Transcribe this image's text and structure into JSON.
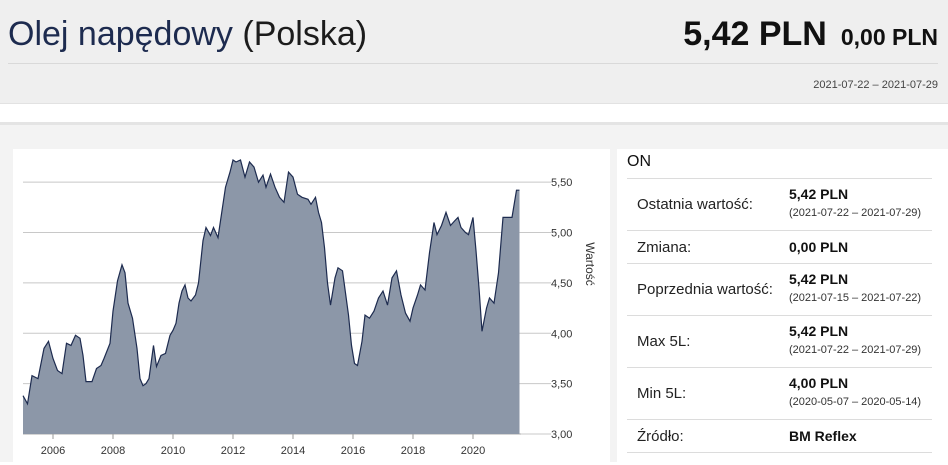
{
  "header": {
    "title": "Olej napędowy",
    "country": "(Polska)",
    "price": "5,42 PLN",
    "change": "0,00 PLN",
    "date_range": "2021-07-22 – 2021-07-29"
  },
  "info": {
    "title": "ON",
    "rows": [
      {
        "label": "Ostatnia wartość:",
        "value": "5,42 PLN",
        "sub": "(2021-07-22 – 2021-07-29)"
      },
      {
        "label": "Zmiana:",
        "value": "0,00 PLN"
      },
      {
        "label": "Poprzednia wartość:",
        "value": "5,42 PLN",
        "sub": "(2021-07-15 – 2021-07-22)"
      },
      {
        "label": "Max 5L:",
        "value": "5,42 PLN",
        "sub": "(2021-07-22 – 2021-07-29)"
      },
      {
        "label": "Min 5L:",
        "value": "4,00 PLN",
        "sub": "(2020-05-07 – 2020-05-14)"
      },
      {
        "label": "Źródło:",
        "value": "BM Reflex"
      }
    ]
  },
  "chart_data": {
    "type": "area",
    "ylabel": "Wartość",
    "ylim": [
      3.0,
      5.75
    ],
    "xlim": [
      2005.0,
      2021.6
    ],
    "y_ticks": [
      "3,00",
      "3,50",
      "4,00",
      "4,50",
      "5,00",
      "5,50"
    ],
    "x_ticks": [
      "2006",
      "2008",
      "2010",
      "2012",
      "2014",
      "2016",
      "2018",
      "2020"
    ],
    "grid": true,
    "fill_color": "#8c97a8",
    "line_color": "#1d2b4f",
    "x": [
      2005.0,
      2005.15,
      2005.3,
      2005.5,
      2005.7,
      2005.85,
      2006.0,
      2006.15,
      2006.3,
      2006.45,
      2006.6,
      2006.75,
      2006.9,
      2007.0,
      2007.1,
      2007.3,
      2007.45,
      2007.6,
      2007.7,
      2007.9,
      2008.0,
      2008.15,
      2008.3,
      2008.4,
      2008.5,
      2008.65,
      2008.8,
      2008.9,
      2009.0,
      2009.1,
      2009.2,
      2009.35,
      2009.45,
      2009.6,
      2009.75,
      2009.9,
      2010.0,
      2010.1,
      2010.2,
      2010.3,
      2010.4,
      2010.5,
      2010.6,
      2010.75,
      2010.85,
      2011.0,
      2011.1,
      2011.25,
      2011.35,
      2011.5,
      2011.6,
      2011.75,
      2011.9,
      2012.0,
      2012.1,
      2012.25,
      2012.4,
      2012.55,
      2012.7,
      2012.85,
      2013.0,
      2013.1,
      2013.25,
      2013.4,
      2013.55,
      2013.7,
      2013.85,
      2014.0,
      2014.15,
      2014.3,
      2014.5,
      2014.6,
      2014.75,
      2014.85,
      2014.95,
      2015.05,
      2015.15,
      2015.25,
      2015.4,
      2015.5,
      2015.65,
      2015.75,
      2015.85,
      2015.95,
      2016.05,
      2016.15,
      2016.3,
      2016.4,
      2016.55,
      2016.7,
      2016.85,
      2017.0,
      2017.15,
      2017.3,
      2017.45,
      2017.6,
      2017.75,
      2017.9,
      2018.0,
      2018.15,
      2018.25,
      2018.4,
      2018.55,
      2018.7,
      2018.8,
      2018.95,
      2019.1,
      2019.25,
      2019.4,
      2019.5,
      2019.6,
      2019.75,
      2019.85,
      2020.0,
      2020.1,
      2020.2,
      2020.3,
      2020.45,
      2020.55,
      2020.7,
      2020.85,
      2021.0,
      2021.15,
      2021.3,
      2021.45,
      2021.55
    ],
    "y": [
      3.38,
      3.3,
      3.58,
      3.55,
      3.85,
      3.92,
      3.75,
      3.63,
      3.6,
      3.9,
      3.88,
      3.98,
      3.95,
      3.78,
      3.52,
      3.52,
      3.65,
      3.68,
      3.75,
      3.9,
      4.22,
      4.52,
      4.68,
      4.6,
      4.3,
      4.15,
      3.85,
      3.55,
      3.48,
      3.5,
      3.55,
      3.88,
      3.67,
      3.78,
      3.8,
      3.98,
      4.03,
      4.1,
      4.3,
      4.42,
      4.48,
      4.35,
      4.32,
      4.38,
      4.5,
      4.92,
      5.05,
      4.97,
      5.05,
      4.95,
      5.15,
      5.45,
      5.6,
      5.72,
      5.7,
      5.72,
      5.55,
      5.7,
      5.65,
      5.5,
      5.57,
      5.45,
      5.58,
      5.45,
      5.35,
      5.3,
      5.6,
      5.55,
      5.38,
      5.35,
      5.33,
      5.28,
      5.35,
      5.2,
      5.1,
      4.85,
      4.5,
      4.28,
      4.55,
      4.65,
      4.62,
      4.4,
      4.18,
      3.88,
      3.7,
      3.68,
      3.92,
      4.18,
      4.15,
      4.22,
      4.35,
      4.42,
      4.28,
      4.55,
      4.62,
      4.38,
      4.2,
      4.12,
      4.25,
      4.38,
      4.48,
      4.43,
      4.8,
      5.1,
      4.98,
      5.07,
      5.2,
      5.07,
      5.12,
      5.15,
      5.05,
      5.0,
      4.98,
      5.15,
      4.82,
      4.45,
      4.02,
      4.25,
      4.35,
      4.3,
      4.6,
      5.15,
      5.15,
      5.15,
      5.42,
      5.42
    ]
  }
}
